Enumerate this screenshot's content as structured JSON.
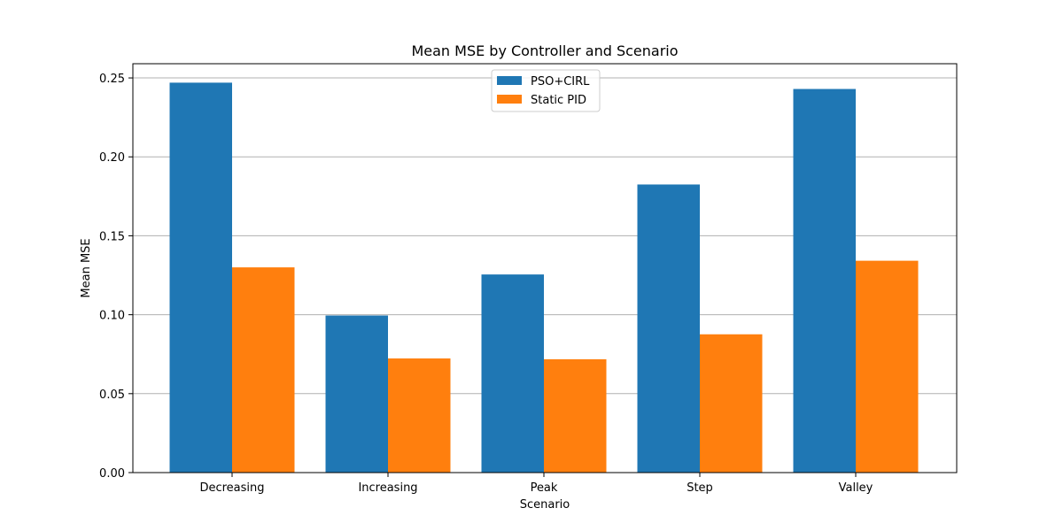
{
  "chart_data": {
    "type": "bar",
    "title": "Mean MSE by Controller and Scenario",
    "xlabel": "Scenario",
    "ylabel": "Mean MSE",
    "categories": [
      "Decreasing",
      "Increasing",
      "Peak",
      "Step",
      "Valley"
    ],
    "series": [
      {
        "name": "PSO+CIRL",
        "color": "#1f77b4",
        "values": [
          0.247,
          0.0995,
          0.1255,
          0.1825,
          0.243
        ]
      },
      {
        "name": "Static PID",
        "color": "#ff7f0e",
        "values": [
          0.13,
          0.0723,
          0.0718,
          0.0876,
          0.1342
        ]
      }
    ],
    "ylim": [
      0,
      0.259
    ],
    "yticks": [
      0.0,
      0.05,
      0.1,
      0.15,
      0.2,
      0.25
    ],
    "ytick_labels": [
      "0.00",
      "0.05",
      "0.10",
      "0.15",
      "0.20",
      "0.25"
    ],
    "grid": "horizontal",
    "legend_position": "top-center"
  }
}
